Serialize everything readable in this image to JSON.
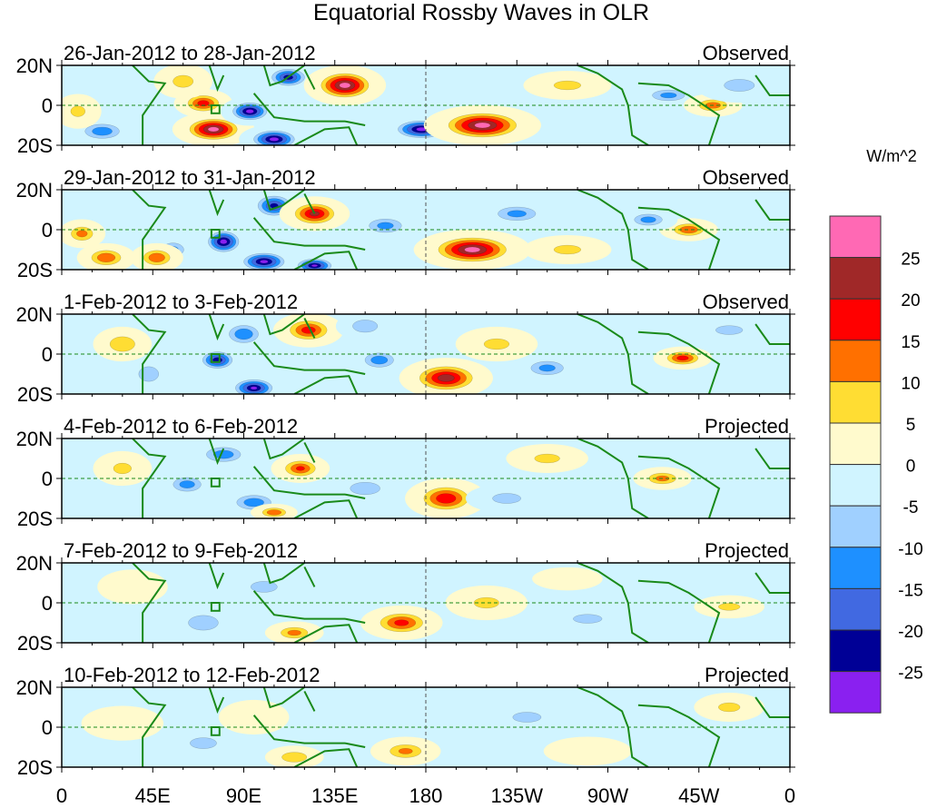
{
  "chart_data": {
    "type": "heatmap",
    "title": "Equatorial Rossby Waves in OLR",
    "units_label": "W/m^2",
    "x_ticks": [
      "0",
      "45E",
      "90E",
      "135E",
      "180",
      "135W",
      "90W",
      "45W",
      "0"
    ],
    "x_tick_values": [
      0,
      45,
      90,
      135,
      180,
      225,
      270,
      315,
      360
    ],
    "y_ticks": [
      "20N",
      "0",
      "20S"
    ],
    "y_tick_values": [
      20,
      0,
      -20
    ],
    "xlim": [
      0,
      360
    ],
    "ylim": [
      -20,
      20
    ],
    "colorbar": {
      "levels": [
        "25",
        "20",
        "15",
        "10",
        "5",
        "0",
        "-5",
        "-10",
        "-15",
        "-20",
        "-25"
      ],
      "colors": [
        "#ff69b4",
        "#a02828",
        "#ff0000",
        "#ff7000",
        "#ffdd33",
        "#fffacd",
        "#d0f4ff",
        "#a0d0ff",
        "#1e90ff",
        "#4169e1",
        "#000096",
        "#8a20f0"
      ]
    },
    "panels": [
      {
        "period": "26-Jan-2012 to 28-Jan-2012",
        "status": "Observed",
        "features": [
          [
            75,
            -12,
            14,
            6,
            28
          ],
          [
            70,
            1,
            10,
            5,
            18
          ],
          [
            93,
            -3,
            10,
            5,
            -28
          ],
          [
            105,
            -17,
            12,
            5,
            -28
          ],
          [
            112,
            14,
            10,
            5,
            -23
          ],
          [
            140,
            10,
            14,
            7,
            28
          ],
          [
            178,
            -12,
            14,
            5,
            -28
          ],
          [
            208,
            -10,
            20,
            7,
            28
          ],
          [
            300,
            5,
            12,
            4,
            -12
          ],
          [
            322,
            0,
            10,
            4,
            13
          ],
          [
            60,
            12,
            10,
            6,
            7
          ],
          [
            20,
            -13,
            12,
            5,
            -14
          ],
          [
            250,
            10,
            15,
            5,
            6
          ],
          [
            8,
            -3,
            8,
            6,
            6
          ],
          [
            335,
            10,
            15,
            6,
            -7
          ]
        ]
      },
      {
        "period": "29-Jan-2012 to 31-Jan-2012",
        "status": "Observed",
        "features": [
          [
            80,
            -6,
            9,
            6,
            -28
          ],
          [
            100,
            -16,
            12,
            5,
            -27
          ],
          [
            105,
            12,
            10,
            6,
            -22
          ],
          [
            125,
            8,
            12,
            6,
            22
          ],
          [
            203,
            -10,
            20,
            7,
            28
          ],
          [
            125,
            -18,
            10,
            4,
            -26
          ],
          [
            55,
            -10,
            8,
            5,
            -12
          ],
          [
            47,
            -14,
            9,
            5,
            15
          ],
          [
            22,
            -14,
            10,
            5,
            15
          ],
          [
            10,
            -2,
            8,
            5,
            12
          ],
          [
            225,
            8,
            14,
            5,
            -12
          ],
          [
            310,
            0,
            10,
            4,
            15
          ],
          [
            290,
            5,
            10,
            4,
            -13
          ],
          [
            160,
            2,
            12,
            5,
            -12
          ],
          [
            250,
            -10,
            15,
            5,
            6
          ]
        ]
      },
      {
        "period": "1-Feb-2012 to 3-Feb-2012",
        "status": "Observed",
        "features": [
          [
            77,
            -3,
            9,
            5,
            -24
          ],
          [
            95,
            -17,
            11,
            5,
            -26
          ],
          [
            90,
            10,
            10,
            6,
            -15
          ],
          [
            122,
            12,
            12,
            6,
            18
          ],
          [
            190,
            -12,
            16,
            7,
            24
          ],
          [
            157,
            -3,
            10,
            5,
            -14
          ],
          [
            43,
            -10,
            8,
            6,
            -10
          ],
          [
            30,
            5,
            10,
            6,
            10
          ],
          [
            307,
            -2,
            10,
            4,
            18
          ],
          [
            215,
            5,
            14,
            6,
            6
          ],
          [
            240,
            -7,
            12,
            5,
            -12
          ],
          [
            150,
            14,
            10,
            5,
            -10
          ],
          [
            330,
            12,
            15,
            5,
            -6
          ]
        ]
      },
      {
        "period": "4-Feb-2012 to 6-Feb-2012",
        "status": "Projected",
        "features": [
          [
            62,
            -3,
            10,
            5,
            -13
          ],
          [
            80,
            12,
            12,
            5,
            -14
          ],
          [
            95,
            -12,
            12,
            5,
            -14
          ],
          [
            118,
            5,
            10,
            5,
            16
          ],
          [
            190,
            -10,
            14,
            7,
            20
          ],
          [
            150,
            -5,
            12,
            5,
            -10
          ],
          [
            297,
            0,
            10,
            4,
            12
          ],
          [
            30,
            5,
            10,
            6,
            6
          ],
          [
            105,
            -17,
            8,
            3,
            15
          ],
          [
            240,
            10,
            14,
            5,
            6
          ],
          [
            220,
            -10,
            14,
            5,
            -7
          ]
        ]
      },
      {
        "period": "7-Feb-2012 to 9-Feb-2012",
        "status": "Projected",
        "features": [
          [
            70,
            -10,
            12,
            6,
            -10
          ],
          [
            115,
            -15,
            10,
            4,
            12
          ],
          [
            168,
            -10,
            14,
            6,
            17
          ],
          [
            100,
            8,
            12,
            5,
            -8
          ],
          [
            210,
            0,
            14,
            6,
            6
          ],
          [
            330,
            -2,
            12,
            4,
            6
          ],
          [
            35,
            8,
            12,
            6,
            5
          ],
          [
            260,
            -8,
            16,
            5,
            -6
          ],
          [
            250,
            12,
            12,
            4,
            5
          ]
        ]
      },
      {
        "period": "10-Feb-2012 to 12-Feb-2012",
        "status": "Projected",
        "features": [
          [
            115,
            -15,
            10,
            4,
            10
          ],
          [
            170,
            -12,
            12,
            5,
            11
          ],
          [
            95,
            5,
            12,
            6,
            5
          ],
          [
            330,
            10,
            12,
            5,
            6
          ],
          [
            70,
            -8,
            12,
            5,
            -8
          ],
          [
            30,
            2,
            14,
            6,
            5
          ],
          [
            230,
            5,
            14,
            5,
            -7
          ],
          [
            260,
            -12,
            15,
            5,
            5
          ]
        ]
      }
    ]
  }
}
